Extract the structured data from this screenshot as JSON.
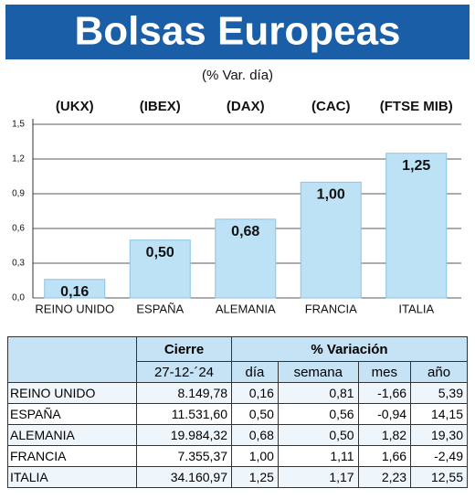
{
  "chart_data": {
    "type": "bar",
    "title": "Bolsas Europeas",
    "subtitle": "(% Var. día)",
    "tickers": [
      "(UKX)",
      "(IBEX)",
      "(DAX)",
      "(CAC)",
      "(FTSE MIB)"
    ],
    "categories": [
      "REINO UNIDO",
      "ESPAÑA",
      "ALEMANIA",
      "FRANCIA",
      "ITALIA"
    ],
    "values": [
      0.16,
      0.5,
      0.68,
      1.0,
      1.25
    ],
    "value_labels": [
      "0,16",
      "0,50",
      "0,68",
      "1,00",
      "1,25"
    ],
    "color": "#bde2f6",
    "ylim": [
      0,
      1.5
    ],
    "yticks": [
      {
        "value": 0,
        "label": "0,0"
      },
      {
        "value": 0.3,
        "label": "0,3"
      },
      {
        "value": 0.6,
        "label": "0,6"
      },
      {
        "value": 0.9,
        "label": "0,9"
      },
      {
        "value": 1.2,
        "label": "1,2"
      },
      {
        "value": 1.5,
        "label": "1,5"
      }
    ],
    "grid": true
  },
  "table": {
    "header1": [
      "Cierre",
      "% Variación"
    ],
    "header2": [
      "27-12-´24",
      "día",
      "semana",
      "mes",
      "año"
    ],
    "rows": [
      [
        "REINO UNIDO",
        "8.149,78",
        "0,16",
        "0,81",
        "-1,66",
        "5,39"
      ],
      [
        "ESPAÑA",
        "11.531,60",
        "0,50",
        "0,56",
        "-0,94",
        "14,15"
      ],
      [
        "ALEMANIA",
        "19.984,32",
        "0,68",
        "0,50",
        "1,82",
        "19,30"
      ],
      [
        "FRANCIA",
        "7.355,37",
        "1,00",
        "1,11",
        "1,66",
        "-2,49"
      ],
      [
        "ITALIA",
        "34.160,97",
        "1,25",
        "1,17",
        "2,23",
        "12,55"
      ]
    ]
  }
}
